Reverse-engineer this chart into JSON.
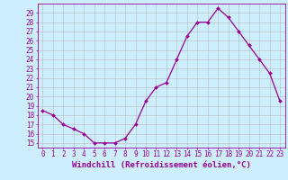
{
  "x": [
    0,
    1,
    2,
    3,
    4,
    5,
    6,
    7,
    8,
    9,
    10,
    11,
    12,
    13,
    14,
    15,
    16,
    17,
    18,
    19,
    20,
    21,
    22,
    23
  ],
  "y": [
    18.5,
    18.0,
    17.0,
    16.5,
    16.0,
    15.0,
    15.0,
    15.0,
    15.5,
    17.0,
    19.5,
    21.0,
    21.5,
    24.0,
    26.5,
    28.0,
    28.0,
    29.5,
    28.5,
    27.0,
    25.5,
    24.0,
    22.5,
    19.5
  ],
  "line_color": "#990099",
  "marker": "D",
  "marker_size": 2,
  "bg_color": "#cceeff",
  "grid_color": "#bbbbbb",
  "xlabel": "Windchill (Refroidissement éolien,°C)",
  "xlim": [
    -0.5,
    23.5
  ],
  "ylim": [
    14.5,
    30.0
  ],
  "yticks": [
    15,
    16,
    17,
    18,
    19,
    20,
    21,
    22,
    23,
    24,
    25,
    26,
    27,
    28,
    29
  ],
  "xticks": [
    0,
    1,
    2,
    3,
    4,
    5,
    6,
    7,
    8,
    9,
    10,
    11,
    12,
    13,
    14,
    15,
    16,
    17,
    18,
    19,
    20,
    21,
    22,
    23
  ],
  "tick_color": "#990099",
  "label_color": "#990099",
  "font_size_xlabel": 6.5,
  "font_size_ytick": 5.5,
  "font_size_xtick": 5.5
}
